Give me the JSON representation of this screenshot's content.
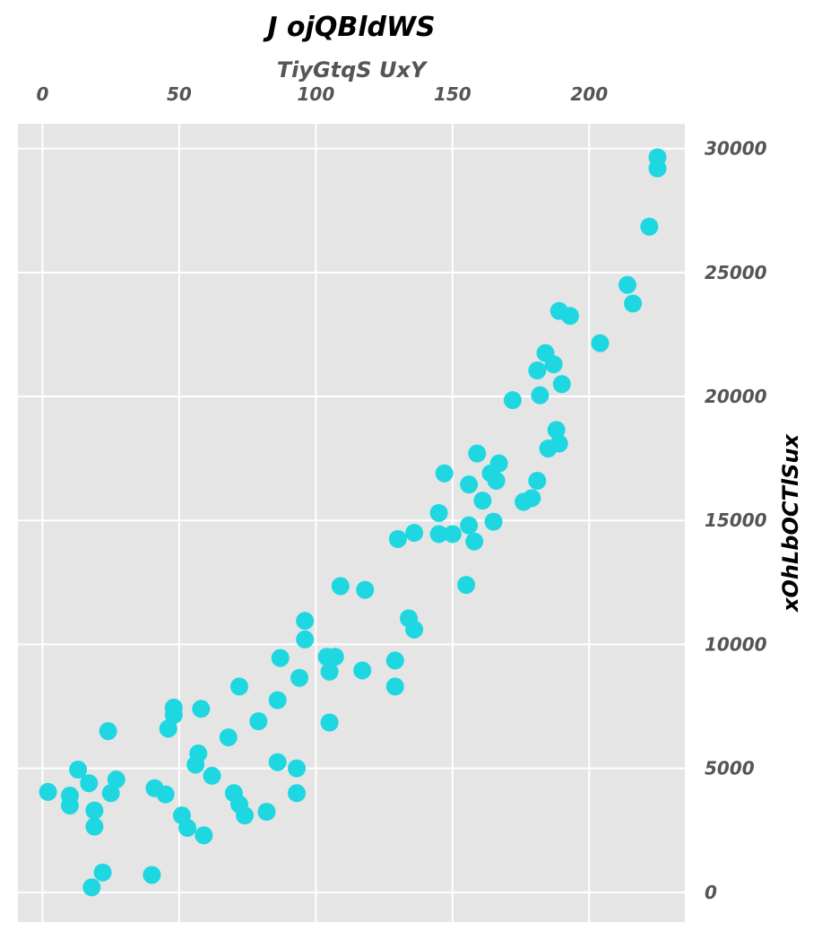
{
  "chart_data": {
    "type": "scatter",
    "title": "J ojQBldWS",
    "xlabel": "TiyGtqS UxY",
    "ylabel": "xOhLbOCTlSux",
    "x_axis_position": "top",
    "y_axis_position": "right",
    "grid": true,
    "xlim": [
      -9,
      235
    ],
    "ylim": [
      -1200,
      31000
    ],
    "xticks": [
      0,
      50,
      100,
      150,
      200
    ],
    "yticks": [
      0,
      5000,
      10000,
      15000,
      20000,
      25000,
      30000
    ],
    "colors": {
      "panel": "#e5e5e5",
      "grid": "#ffffff",
      "points": "#1fd7e0"
    },
    "points": [
      [
        2,
        4050
      ],
      [
        10,
        3900
      ],
      [
        10,
        3500
      ],
      [
        13,
        4950
      ],
      [
        17,
        4400
      ],
      [
        19,
        3300
      ],
      [
        19,
        2650
      ],
      [
        18,
        200
      ],
      [
        22,
        800
      ],
      [
        24,
        6500
      ],
      [
        25,
        4000
      ],
      [
        27,
        4550
      ],
      [
        40,
        700
      ],
      [
        41,
        4200
      ],
      [
        45,
        3950
      ],
      [
        46,
        6600
      ],
      [
        48,
        7450
      ],
      [
        48,
        7150
      ],
      [
        51,
        3100
      ],
      [
        53,
        2600
      ],
      [
        56,
        5150
      ],
      [
        57,
        5600
      ],
      [
        58,
        7400
      ],
      [
        59,
        2300
      ],
      [
        62,
        4700
      ],
      [
        68,
        6250
      ],
      [
        70,
        4000
      ],
      [
        72,
        8300
      ],
      [
        72,
        3550
      ],
      [
        74,
        3100
      ],
      [
        79,
        6900
      ],
      [
        82,
        3250
      ],
      [
        86,
        5250
      ],
      [
        86,
        7750
      ],
      [
        87,
        9450
      ],
      [
        93,
        4000
      ],
      [
        93,
        5000
      ],
      [
        94,
        8650
      ],
      [
        96,
        10950
      ],
      [
        96,
        10200
      ],
      [
        104,
        9500
      ],
      [
        105,
        8900
      ],
      [
        105,
        6850
      ],
      [
        107,
        9500
      ],
      [
        109,
        12350
      ],
      [
        117,
        8950
      ],
      [
        118,
        12200
      ],
      [
        129,
        9350
      ],
      [
        129,
        8300
      ],
      [
        130,
        14250
      ],
      [
        134,
        11050
      ],
      [
        136,
        14500
      ],
      [
        136,
        10600
      ],
      [
        145,
        15300
      ],
      [
        145,
        14450
      ],
      [
        147,
        16900
      ],
      [
        150,
        14450
      ],
      [
        155,
        12400
      ],
      [
        156,
        14800
      ],
      [
        156,
        16450
      ],
      [
        158,
        14150
      ],
      [
        159,
        17700
      ],
      [
        161,
        15800
      ],
      [
        164,
        16900
      ],
      [
        165,
        14950
      ],
      [
        166,
        16600
      ],
      [
        167,
        17300
      ],
      [
        172,
        19850
      ],
      [
        176,
        15750
      ],
      [
        179,
        15900
      ],
      [
        181,
        16600
      ],
      [
        181,
        21050
      ],
      [
        182,
        20050
      ],
      [
        184,
        21750
      ],
      [
        185,
        17900
      ],
      [
        187,
        21300
      ],
      [
        188,
        18650
      ],
      [
        189,
        18100
      ],
      [
        189,
        23450
      ],
      [
        190,
        20500
      ],
      [
        193,
        23250
      ],
      [
        204,
        22150
      ],
      [
        214,
        24500
      ],
      [
        216,
        23750
      ],
      [
        222,
        26850
      ],
      [
        225,
        29650
      ],
      [
        225,
        29200
      ]
    ]
  }
}
